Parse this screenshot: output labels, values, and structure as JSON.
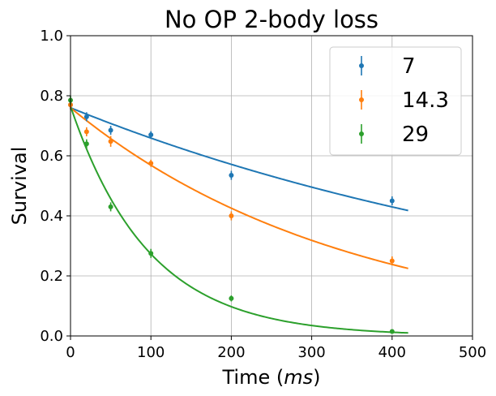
{
  "chart_data": {
    "type": "scatter",
    "title": "No OP 2-body loss",
    "xlabel_prefix": "Time (",
    "xlabel_unit": "ms",
    "xlabel_suffix": ")",
    "ylabel": "Survival",
    "xlim": [
      0,
      500
    ],
    "ylim": [
      0,
      1.0
    ],
    "x_ticks": [
      0,
      100,
      200,
      300,
      400,
      500
    ],
    "x_tick_labels": [
      "0",
      "100",
      "200",
      "300",
      "400",
      "500"
    ],
    "y_ticks": [
      0,
      0.2,
      0.4,
      0.6,
      0.8,
      1.0
    ],
    "y_tick_labels": [
      "0.0",
      "0.2",
      "0.4",
      "0.6",
      "0.8",
      "1.0"
    ],
    "grid": true,
    "legend_position": "top-right",
    "fit_x_max": 420,
    "series": [
      {
        "name": "7",
        "color": "#1f77b4",
        "x": [
          0,
          20,
          50,
          100,
          200,
          400
        ],
        "y": [
          0.77,
          0.73,
          0.685,
          0.67,
          0.535,
          0.45
        ],
        "yerr": [
          0.015,
          0.015,
          0.015,
          0.012,
          0.015,
          0.015
        ],
        "fit": {
          "start": 0.76,
          "rate": 0.001425
        }
      },
      {
        "name": "14.3",
        "color": "#ff7f0e",
        "x": [
          0,
          20,
          50,
          100,
          200,
          400
        ],
        "y": [
          0.77,
          0.68,
          0.648,
          0.575,
          0.4,
          0.25
        ],
        "yerr": [
          0.015,
          0.015,
          0.018,
          0.012,
          0.015,
          0.015
        ],
        "fit": {
          "start": 0.76,
          "rate": 0.0029
        }
      },
      {
        "name": "29",
        "color": "#2ca02c",
        "x": [
          0,
          20,
          50,
          100,
          200,
          400
        ],
        "y": [
          0.785,
          0.64,
          0.43,
          0.275,
          0.125,
          0.015
        ],
        "yerr": [
          0.015,
          0.015,
          0.015,
          0.015,
          0.01,
          0.005
        ],
        "fit": {
          "start": 0.765,
          "rate": 0.0103
        }
      }
    ]
  }
}
